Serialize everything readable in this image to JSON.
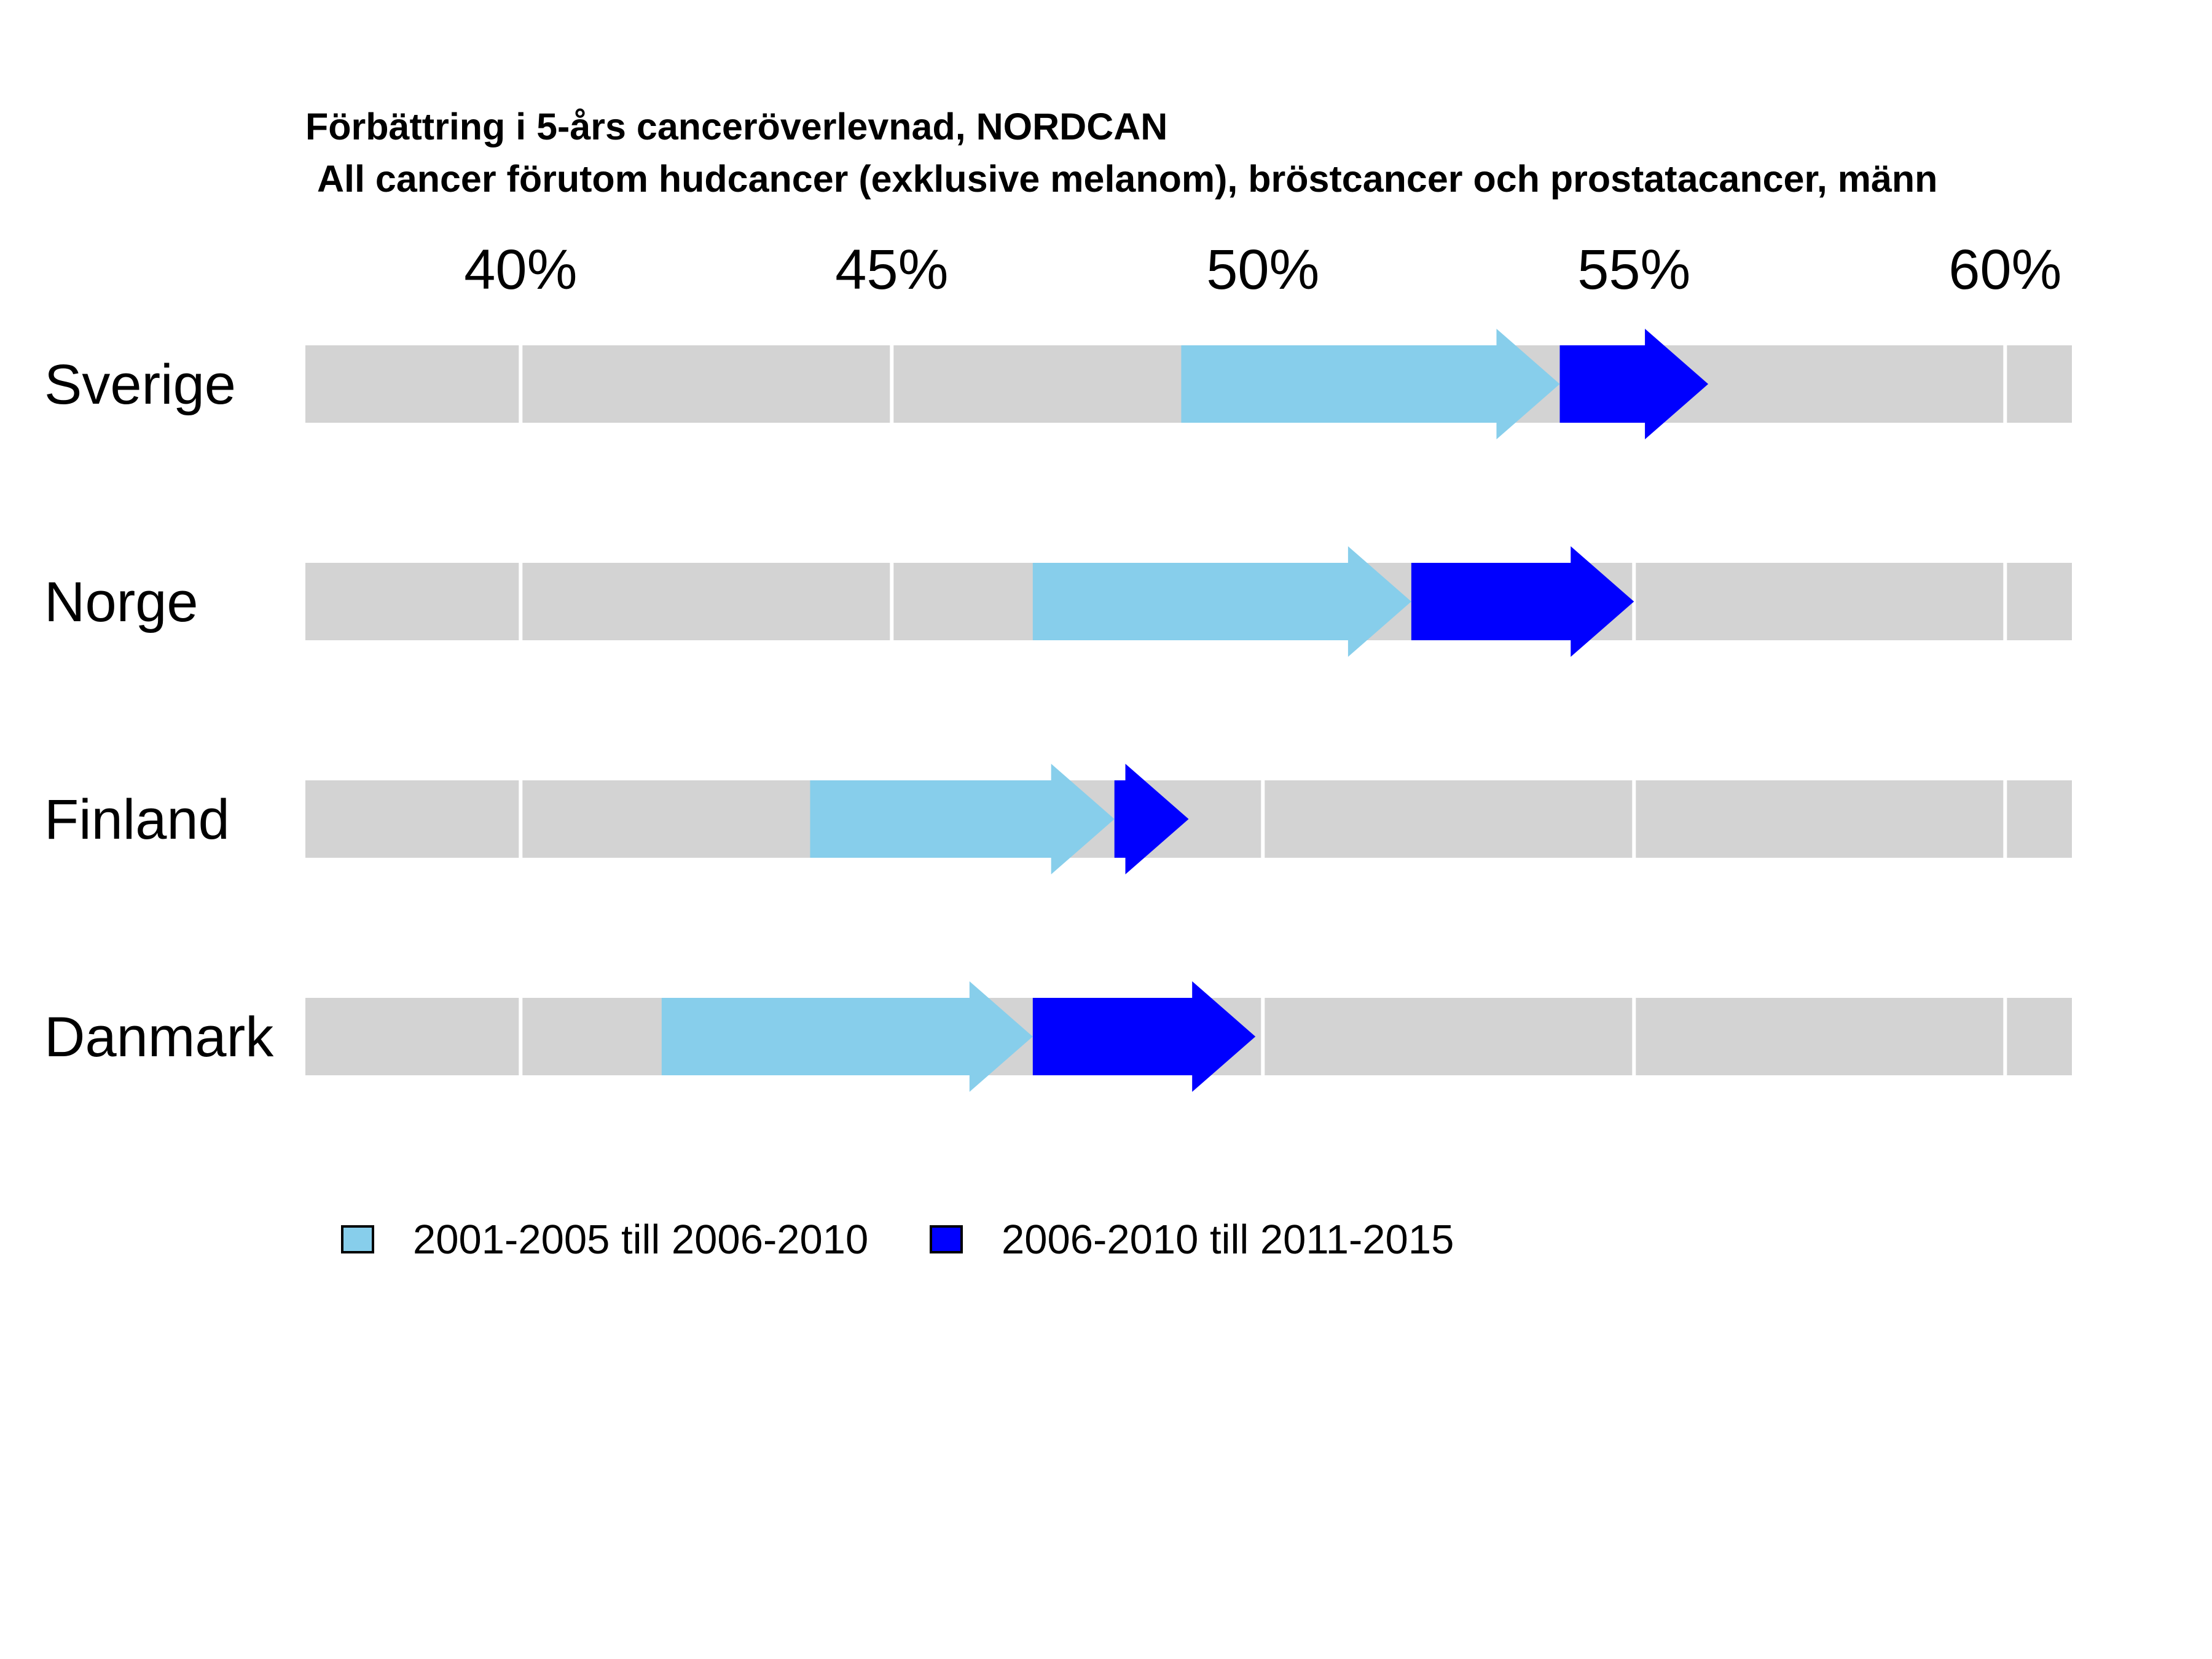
{
  "chart_data": {
    "type": "arrow-range",
    "title": "Förbättring i 5-års canceröverlevnad, NORDCAN",
    "subtitle": "All cancer förutom hudcancer (exklusive melanom), bröstcancer och prostatacancer, männ",
    "x_ticks": [
      "40%",
      "45%",
      "50%",
      "55%",
      "60%"
    ],
    "x_tick_values": [
      40,
      45,
      50,
      55,
      60
    ],
    "xlim": [
      37.1,
      60.9
    ],
    "categories": [
      "Sverige",
      "Norge",
      "Finland",
      "Danmark"
    ],
    "series": [
      {
        "name": "2001-2005 till 2006-2010",
        "color": "#87CEEB",
        "segments": [
          {
            "from": 48.9,
            "to": 54.0
          },
          {
            "from": 46.9,
            "to": 52.0
          },
          {
            "from": 43.9,
            "to": 48.0
          },
          {
            "from": 41.9,
            "to": 46.9
          }
        ]
      },
      {
        "name": "2006-2010 till 2011-2015",
        "color": "#0000FF",
        "segments": [
          {
            "from": 54.0,
            "to": 56.0
          },
          {
            "from": 52.0,
            "to": 55.0
          },
          {
            "from": 48.0,
            "to": 49.0
          },
          {
            "from": 46.9,
            "to": 49.9
          }
        ]
      }
    ],
    "background_bar_color": "#D3D3D3",
    "grid": true,
    "legend_position": "bottom"
  }
}
